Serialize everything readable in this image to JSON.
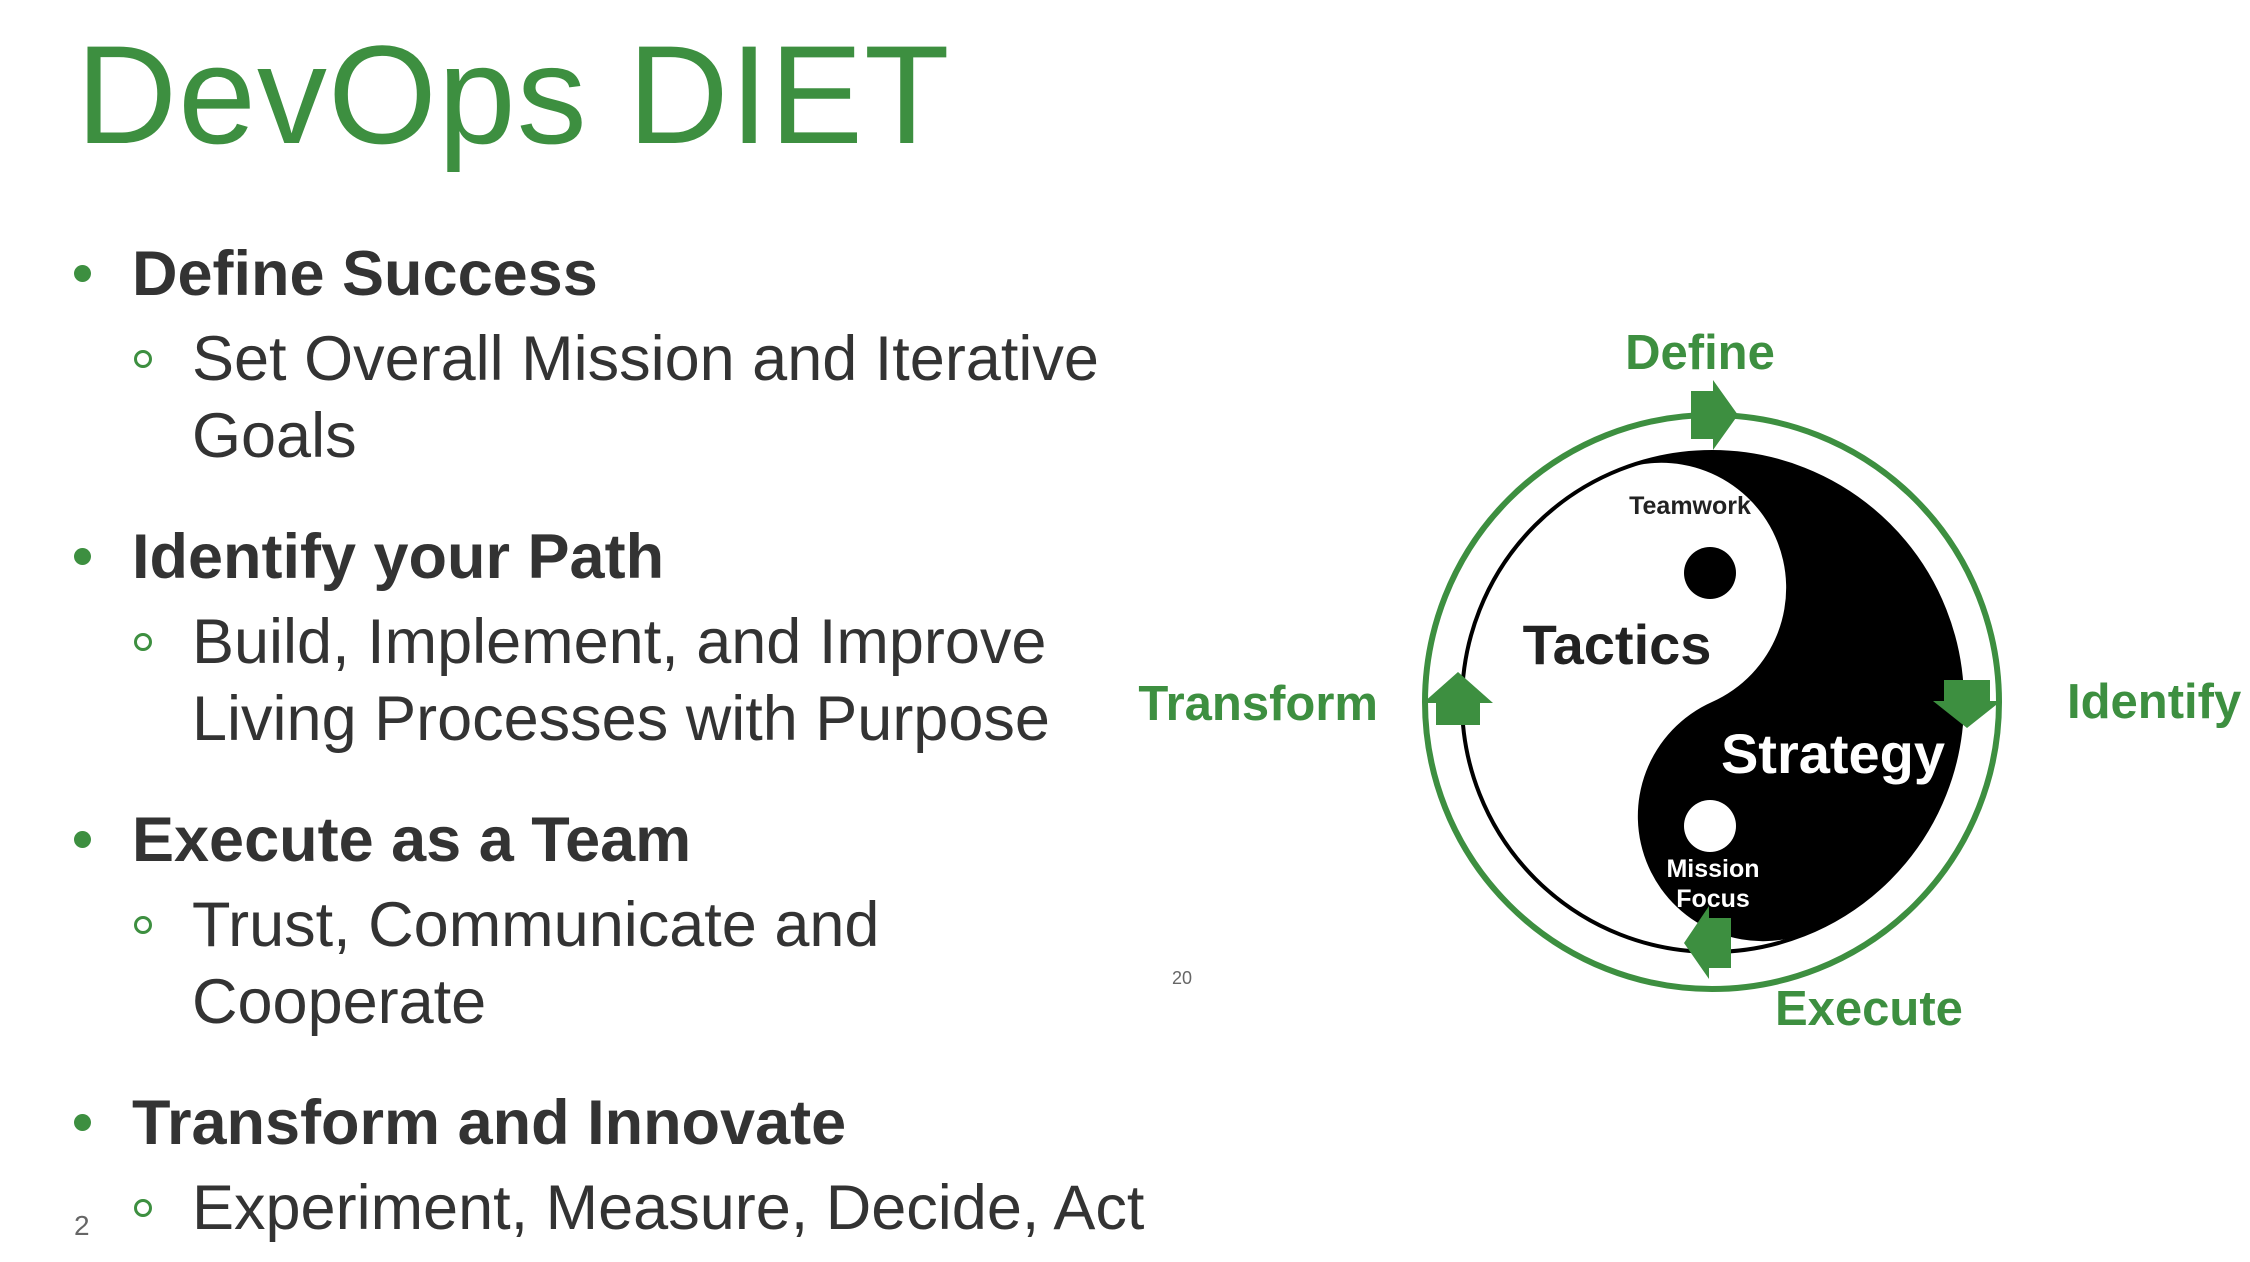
{
  "slide": {
    "title": "DevOps DIET",
    "slide_number": "2",
    "page_ref": "20",
    "accent_color": "#3d8f40",
    "text_color": "#333333"
  },
  "bullets": [
    {
      "heading": "Define Success",
      "sub_lines": [
        "Set Overall Mission and Iterative",
        "Goals"
      ]
    },
    {
      "heading": "Identify your Path",
      "sub_lines": [
        "Build, Implement, and Improve",
        "Living Processes with Purpose"
      ]
    },
    {
      "heading": "Execute as a Team",
      "sub_lines": [
        "Trust, Communicate and",
        "Cooperate"
      ]
    },
    {
      "heading": "Transform and Innovate",
      "sub_lines": [
        "Experiment, Measure, Decide, Act"
      ]
    }
  ],
  "diagram": {
    "cycle_labels": {
      "top": "Define",
      "right": "Identify",
      "bottom": "Execute",
      "left": "Transform"
    },
    "yin_yang": {
      "white_side_small": "Teamwork",
      "white_side_large": "Tactics",
      "black_side_large": "Strategy",
      "black_side_small_line1": "Mission",
      "black_side_small_line2": "Focus"
    },
    "arrow_direction": "clockwise"
  }
}
